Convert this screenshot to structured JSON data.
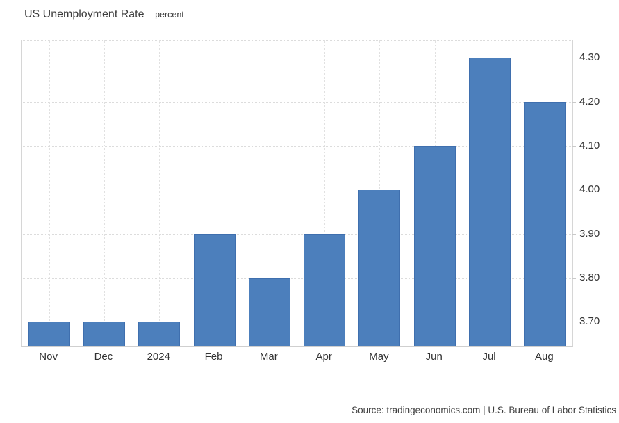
{
  "title": {
    "main": "US Unemployment Rate",
    "subtitle": "- percent"
  },
  "source": {
    "text": "Source: tradingeconomics.com | U.S. Bureau of Labor Statistics"
  },
  "colors": {
    "bar_fill": "#4c7fbc",
    "bar_border": "#3f6fae",
    "gridline": "#dcdcdc",
    "plot_border": "#d6d6d6",
    "axis_text": "#333333",
    "title_text": "#3d3d3d"
  },
  "chart_data": {
    "type": "bar",
    "title": "US Unemployment Rate",
    "subtitle": "percent",
    "categories": [
      "Nov",
      "Dec",
      "2024",
      "Feb",
      "Mar",
      "Apr",
      "May",
      "Jun",
      "Jul",
      "Aug"
    ],
    "values": [
      3.7,
      3.7,
      3.7,
      3.9,
      3.8,
      3.9,
      4.0,
      4.1,
      4.3,
      4.2
    ],
    "xlabel": "",
    "ylabel": "",
    "ylim": [
      3.645,
      4.34
    ],
    "yticks": [
      3.7,
      3.8,
      3.9,
      4.0,
      4.1,
      4.2,
      4.3
    ],
    "ytick_labels": [
      "3.70",
      "3.80",
      "3.90",
      "4.00",
      "4.10",
      "4.20",
      "4.30"
    ],
    "grid": true,
    "grid_style": "dotted",
    "legend": false,
    "yaxis_position": "right",
    "source": "Source: tradingeconomics.com | U.S. Bureau of Labor Statistics"
  }
}
